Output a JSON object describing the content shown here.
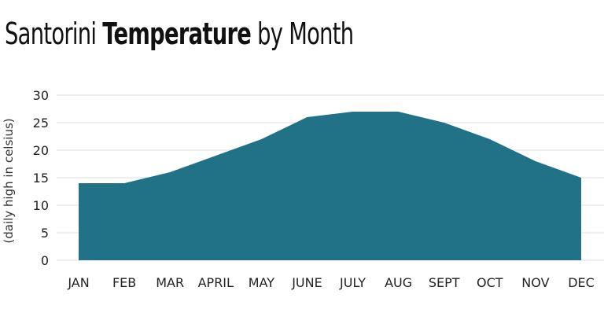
{
  "title": {
    "prefix": "Santorini ",
    "emphasis": "Temperature",
    "suffix": " by Month"
  },
  "chart_data": {
    "type": "area",
    "title": "Santorini Temperature by Month",
    "xlabel": "",
    "ylabel": "(daily high in celsius)",
    "categories": [
      "JAN",
      "FEB",
      "MAR",
      "APRIL",
      "MAY",
      "JUNE",
      "JULY",
      "AUG",
      "SEPT",
      "OCT",
      "NOV",
      "DEC"
    ],
    "values": [
      14,
      14,
      16,
      19,
      22,
      26,
      27,
      27,
      25,
      22,
      18,
      15
    ],
    "ylim": [
      0,
      30
    ],
    "yticks": [
      0,
      5,
      10,
      15,
      20,
      25,
      30
    ],
    "grid": true,
    "fill_color": "#217287",
    "grid_color": "#dcdcdc"
  }
}
